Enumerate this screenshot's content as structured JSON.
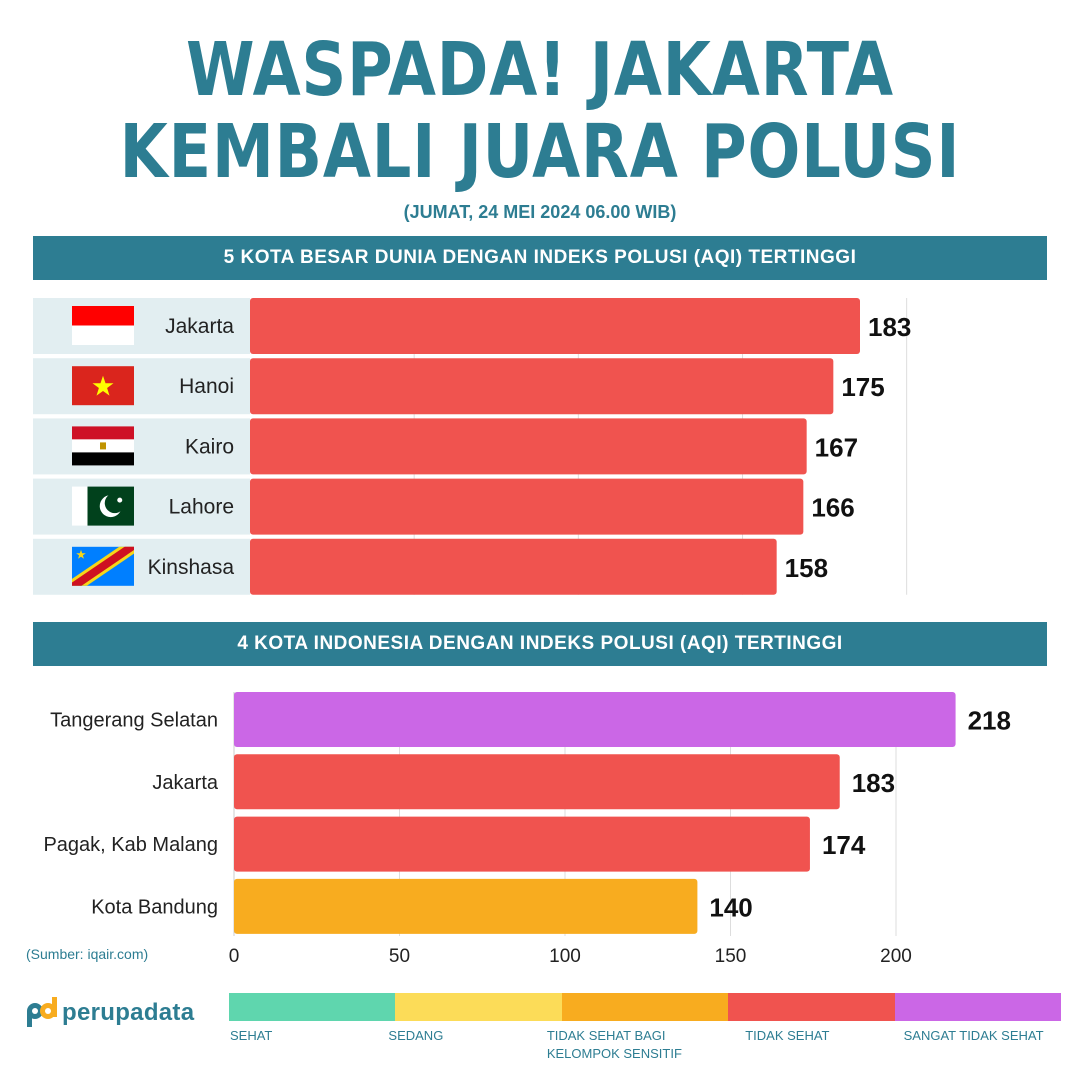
{
  "title_line1": "WASPADA! JAKARTA",
  "title_line2": "KEMBALI JUARA POLUSI",
  "subtitle": "(JUMAT, 24 MEI 2024 06.00 WIB)",
  "source": "(Sumber: iqair.com)",
  "logo_text": "perupadata",
  "colors": {
    "teal": "#2d7d92",
    "red": "#f0534f",
    "purple": "#cb67e6",
    "orange": "#f8ac1f",
    "row_bg": "#e2eef1"
  },
  "scale": [
    {
      "label": "SEHAT",
      "color": "#5fd6ae"
    },
    {
      "label": "SEDANG",
      "color": "#fcdc58"
    },
    {
      "label": "TIDAK SEHAT BAGI KELOMPOK SENSITIF",
      "color": "#f8ac1f"
    },
    {
      "label": "TIDAK SEHAT",
      "color": "#f0534f"
    },
    {
      "label": "SANGAT TIDAK SEHAT",
      "color": "#cb67e6"
    }
  ],
  "chart_data": [
    {
      "type": "bar",
      "orientation": "horizontal",
      "title": "5 KOTA BESAR DUNIA DENGAN INDEKS POLUSI (AQI) TERTINGGI",
      "categories": [
        "Jakarta",
        "Hanoi",
        "Kairo",
        "Lahore",
        "Kinshasa"
      ],
      "flags": [
        "indonesia-flag",
        "vietnam-flag",
        "egypt-flag",
        "pakistan-flag",
        "dr-congo-flag"
      ],
      "values": [
        183,
        175,
        167,
        166,
        158
      ],
      "value_labels": [
        "183",
        "175",
        "167",
        "166",
        "158"
      ],
      "colors": [
        "#f0534f",
        "#f0534f",
        "#f0534f",
        "#f0534f",
        "#f0534f"
      ],
      "xlim": [
        0,
        240
      ],
      "grid": true,
      "data_labels": true
    },
    {
      "type": "bar",
      "orientation": "horizontal",
      "title": "4 KOTA INDONESIA DENGAN INDEKS POLUSI (AQI) TERTINGGI",
      "categories": [
        "Tangerang Selatan",
        "Jakarta",
        "Pagak, Kab Malang",
        "Kota Bandung"
      ],
      "values": [
        218,
        183,
        174,
        140
      ],
      "value_labels": [
        "218",
        "183",
        "174",
        "140"
      ],
      "colors": [
        "#cb67e6",
        "#f0534f",
        "#f0534f",
        "#f8ac1f"
      ],
      "xlim": [
        0,
        250
      ],
      "xticks": [
        0,
        50,
        100,
        150,
        200
      ],
      "xtick_labels": [
        "0",
        "50",
        "100",
        "150",
        "200"
      ],
      "grid": true,
      "data_labels": true
    }
  ]
}
